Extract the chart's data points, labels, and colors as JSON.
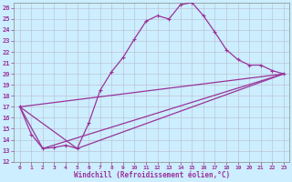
{
  "title": "",
  "xlabel": "Windchill (Refroidissement éolien,°C)",
  "bg_color": "#cceeff",
  "line_color": "#993399",
  "grid_color": "#bbbbcc",
  "xlim": [
    -0.5,
    23.5
  ],
  "ylim": [
    12,
    26.5
  ],
  "xticks": [
    0,
    1,
    2,
    3,
    4,
    5,
    6,
    7,
    8,
    9,
    10,
    11,
    12,
    13,
    14,
    15,
    16,
    17,
    18,
    19,
    20,
    21,
    22,
    23
  ],
  "yticks": [
    12,
    13,
    14,
    15,
    16,
    17,
    18,
    19,
    20,
    21,
    22,
    23,
    24,
    25,
    26
  ],
  "main_curve": [
    [
      0,
      17.0
    ],
    [
      1,
      14.5
    ],
    [
      2,
      13.2
    ],
    [
      3,
      13.3
    ],
    [
      4,
      13.5
    ],
    [
      5,
      13.2
    ],
    [
      6,
      15.5
    ],
    [
      7,
      18.5
    ],
    [
      8,
      20.2
    ],
    [
      9,
      21.5
    ],
    [
      10,
      23.2
    ],
    [
      11,
      24.8
    ],
    [
      12,
      25.3
    ],
    [
      13,
      25.0
    ],
    [
      14,
      26.3
    ],
    [
      15,
      26.5
    ],
    [
      16,
      25.3
    ],
    [
      17,
      23.8
    ],
    [
      18,
      22.2
    ],
    [
      19,
      21.3
    ],
    [
      20,
      20.8
    ],
    [
      21,
      20.8
    ],
    [
      22,
      20.3
    ],
    [
      23,
      20.0
    ]
  ],
  "line_a": [
    [
      0,
      17.0
    ],
    [
      2,
      13.2
    ],
    [
      23,
      20.0
    ]
  ],
  "line_b": [
    [
      0,
      17.0
    ],
    [
      5,
      13.2
    ],
    [
      23,
      20.0
    ]
  ],
  "line_c": [
    [
      0,
      17.0
    ],
    [
      23,
      20.0
    ]
  ]
}
